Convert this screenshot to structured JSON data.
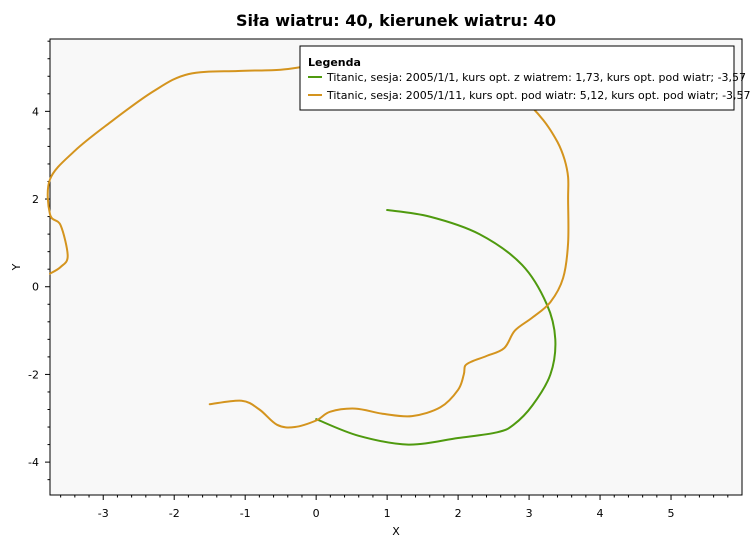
{
  "chart_data": {
    "type": "line",
    "title": "Siła wiatru: 40, kierunek wiatru: 40",
    "xlabel": "X",
    "ylabel": "Y",
    "xlim": [
      -3.75,
      6.0
    ],
    "ylim": [
      -4.75,
      5.65
    ],
    "xticks": [
      -3,
      -2,
      -1,
      0,
      1,
      2,
      3,
      4,
      5
    ],
    "yticks": [
      -4,
      -2,
      0,
      2,
      4
    ],
    "grid": false,
    "legend": {
      "title": "Legenda",
      "placement": "top-right"
    },
    "series": [
      {
        "name": "Titanic, sesja: 2005/1/1, kurs opt. z wiatrem: 1,73, kurs opt. pod wiatr; -3,57",
        "color": "#4f9a0f",
        "x": [
          1.0,
          1.6,
          2.3,
          2.9,
          3.25,
          3.37,
          3.3,
          3.05,
          2.78,
          2.55,
          2.0,
          1.3,
          0.6,
          0.0
        ],
        "y": [
          1.75,
          1.6,
          1.2,
          0.5,
          -0.4,
          -1.2,
          -2.0,
          -2.7,
          -3.15,
          -3.32,
          -3.45,
          -3.6,
          -3.4,
          -3.02
        ]
      },
      {
        "name": "Titanic, sesja: 2005/1/11, kurs opt. pod wiatr: 5,12, kurs opt. pod wiatr; -3,57",
        "color": "#d4941e",
        "x": [
          -1.5,
          -1.05,
          -0.8,
          -0.55,
          -0.3,
          0.0,
          0.2,
          0.55,
          0.95,
          1.35,
          1.75,
          2.0,
          2.08,
          2.1,
          2.2,
          2.4,
          2.65,
          2.8,
          3.05,
          3.3,
          3.48,
          3.55,
          3.55,
          3.55,
          3.5,
          3.4,
          3.2,
          2.9,
          2.5,
          2.0,
          1.4,
          0.7,
          0.0,
          -0.5,
          -1.1,
          -1.8,
          -2.3,
          -2.9,
          -3.4,
          -3.75,
          -3.75,
          -3.6,
          -3.5,
          -3.6,
          -3.75
        ],
        "y": [
          -2.68,
          -2.6,
          -2.8,
          -3.15,
          -3.2,
          -3.05,
          -2.85,
          -2.78,
          -2.9,
          -2.95,
          -2.75,
          -2.35,
          -2.0,
          -1.8,
          -1.7,
          -1.58,
          -1.4,
          -1.0,
          -0.7,
          -0.35,
          0.2,
          1.0,
          2.0,
          2.5,
          2.9,
          3.3,
          3.8,
          4.3,
          4.7,
          4.95,
          5.05,
          5.1,
          5.05,
          4.95,
          4.92,
          4.85,
          4.45,
          3.75,
          3.1,
          2.45,
          1.65,
          1.4,
          0.7,
          0.45,
          0.3
        ]
      }
    ]
  }
}
